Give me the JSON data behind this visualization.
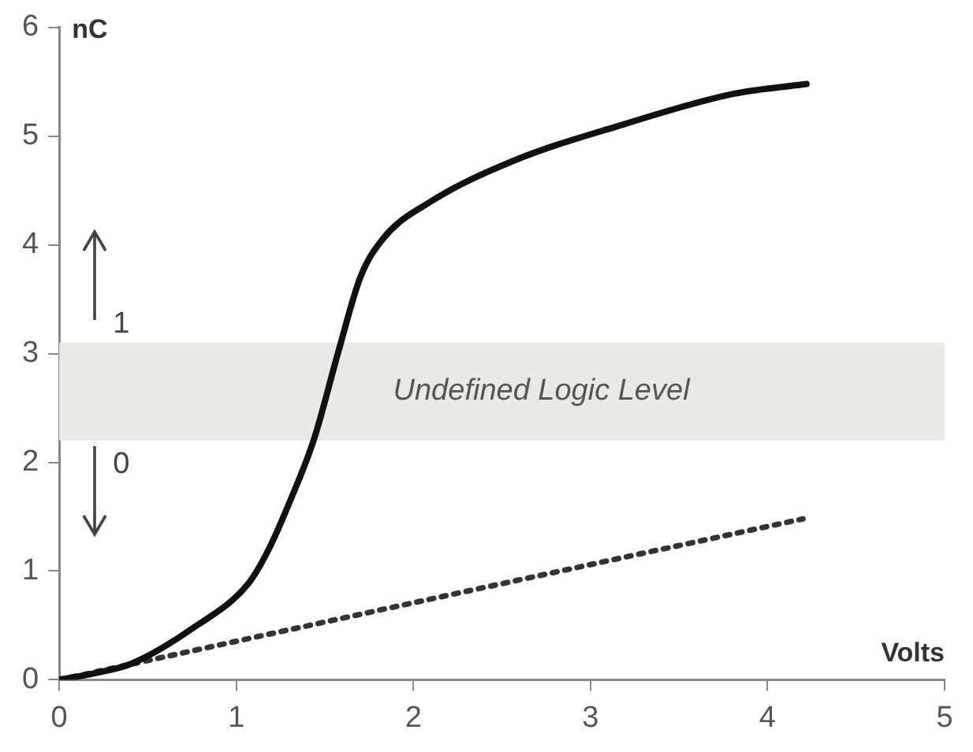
{
  "chart_data": {
    "type": "line",
    "xlabel": "Volts",
    "ylabel": "nC",
    "xlim": [
      0,
      5
    ],
    "xticks": [
      0,
      1,
      2,
      3,
      4,
      5
    ],
    "ylim": [
      0,
      6
    ],
    "yticks": [
      0,
      1,
      2,
      3,
      4,
      5,
      6
    ],
    "grid": false,
    "legend": false,
    "marker": "none",
    "series": [
      {
        "color": "#111111",
        "line_style": "solid",
        "x": [
          0,
          0.2,
          0.41,
          0.75,
          1.07,
          1.18,
          1.3,
          1.44,
          1.58,
          1.7,
          1.83,
          2.1,
          2.56,
          3.19,
          3.81,
          4.22
        ],
        "values": [
          0,
          0.06,
          0.15,
          0.47,
          0.89,
          1.19,
          1.63,
          2.22,
          3.04,
          3.7,
          4.06,
          4.4,
          4.77,
          5.11,
          5.39,
          5.48
        ]
      },
      {
        "color": "#333333",
        "line_style": "dotted",
        "x": [
          0,
          2.26,
          4.2
        ],
        "values": [
          0,
          0.8,
          1.48
        ]
      }
    ],
    "bands": [
      {
        "axis": "y",
        "from": 2.2,
        "to": 3.1,
        "label": "Undefined Logic Level",
        "color": "#e9e9e5"
      }
    ],
    "annotations": [
      "1",
      "0"
    ]
  }
}
